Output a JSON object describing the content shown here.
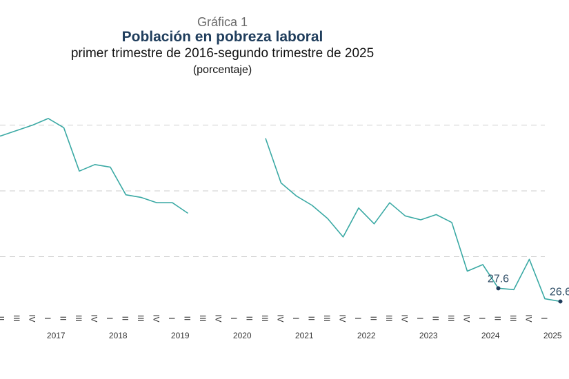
{
  "header": {
    "supertitle": "Gráfica 1",
    "title": "Población en pobreza laboral",
    "subtitle": "primer trimestre de 2016-segundo trimestre de 2025",
    "unit": "(porcentaje)"
  },
  "colors": {
    "line": "#3aa9a4",
    "grid": "#cccccc",
    "point": "#1f3d5c",
    "label": "#2b4a63"
  },
  "chart_data": {
    "type": "line",
    "title": "Población en pobreza laboral",
    "subtitle": "primer trimestre de 2016-segundo trimestre de 2025",
    "ylabel": "(porcentaje)",
    "ylim": [
      25,
      41.5
    ],
    "grid": true,
    "quarter_tick_labels": [
      "I",
      "II",
      "III",
      "IV"
    ],
    "year_labels": [
      "2017",
      "2018",
      "2019",
      "2020",
      "2021",
      "2022",
      "2023",
      "2024",
      "2025"
    ],
    "series": [
      {
        "points": [
          {
            "x": "2016-I",
            "y": 38.9
          },
          {
            "x": "2016-II",
            "y": 39.2
          },
          {
            "x": "2016-III",
            "y": 39.6
          },
          {
            "x": "2016-IV",
            "y": 40.0
          },
          {
            "x": "2017-I",
            "y": 40.5
          },
          {
            "x": "2017-II",
            "y": 39.8
          },
          {
            "x": "2017-III",
            "y": 36.5
          },
          {
            "x": "2017-IV",
            "y": 37.0
          },
          {
            "x": "2018-I",
            "y": 36.8
          },
          {
            "x": "2018-II",
            "y": 34.7
          },
          {
            "x": "2018-III",
            "y": 34.5
          },
          {
            "x": "2018-IV",
            "y": 34.1
          },
          {
            "x": "2019-I",
            "y": 34.1
          },
          {
            "x": "2019-II",
            "y": 33.3
          },
          {
            "x": "2020-III",
            "y": 39.0
          },
          {
            "x": "2020-IV",
            "y": 35.6
          },
          {
            "x": "2021-I",
            "y": 34.6
          },
          {
            "x": "2021-II",
            "y": 33.9
          },
          {
            "x": "2021-III",
            "y": 32.9
          },
          {
            "x": "2021-IV",
            "y": 31.5
          },
          {
            "x": "2022-I",
            "y": 33.7
          },
          {
            "x": "2022-II",
            "y": 32.5
          },
          {
            "x": "2022-III",
            "y": 34.1
          },
          {
            "x": "2022-IV",
            "y": 33.1
          },
          {
            "x": "2023-I",
            "y": 32.8
          },
          {
            "x": "2023-II",
            "y": 33.2
          },
          {
            "x": "2023-III",
            "y": 32.6
          },
          {
            "x": "2023-IV",
            "y": 28.9
          },
          {
            "x": "2024-I",
            "y": 29.4
          },
          {
            "x": "2024-II",
            "y": 27.6
          },
          {
            "x": "2024-III",
            "y": 27.5
          },
          {
            "x": "2024-IV",
            "y": 29.8
          },
          {
            "x": "2025-I",
            "y": 26.8
          },
          {
            "x": "2025-II",
            "y": 26.6
          }
        ]
      }
    ],
    "annotations": [
      {
        "x": "2024-II",
        "y": 27.6,
        "text": "27.6"
      },
      {
        "x": "2025-II",
        "y": 26.6,
        "text": "26.6"
      }
    ]
  }
}
